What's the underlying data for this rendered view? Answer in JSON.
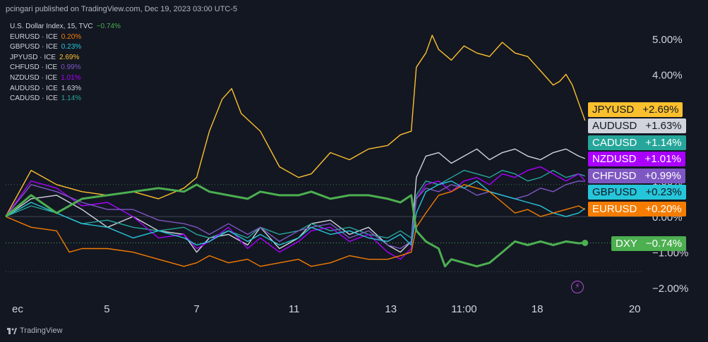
{
  "publisher_line": "pcingari published on TradingView.com, Dec 19, 2023 03:00 UTC-5",
  "brand": "TradingView",
  "colors": {
    "background": "#131722",
    "grid": "#2a2e39",
    "DXY": "#4caf50",
    "EURUSD": "#f57c00",
    "GBPUSD": "#26c6da",
    "JPYUSD": "#fbc02d",
    "CHFUSD": "#7e57c2",
    "NZDUSD": "#aa00ff",
    "AUDUSD": "#d1d4dc",
    "CADUSD": "#26a69a"
  },
  "legend": [
    {
      "key": "DXY",
      "label": "U.S. Dollar Index, 15, TVC",
      "value": "−0.74%"
    },
    {
      "key": "EURUSD",
      "label": "EURUSD · ICE",
      "value": "0.20%"
    },
    {
      "key": "GBPUSD",
      "label": "GBPUSD · ICE",
      "value": "0.23%"
    },
    {
      "key": "JPYUSD",
      "label": "JPYUSD · ICE",
      "value": "2.69%"
    },
    {
      "key": "CHFUSD",
      "label": "CHFUSD · ICE",
      "value": "0.99%"
    },
    {
      "key": "NZDUSD",
      "label": "NZDUSD · ICE",
      "value": "1.01%"
    },
    {
      "key": "AUDUSD",
      "label": "AUDUSD · ICE",
      "value": "1.63%"
    },
    {
      "key": "CADUSD",
      "label": "CADUSD · ICE",
      "value": "1.14%"
    }
  ],
  "tags": [
    {
      "key": "JPYUSD",
      "name": "JPYUSD",
      "value": "+2.69%",
      "level": 2.69,
      "bg": "#fbc02d",
      "fg": "#131722"
    },
    {
      "key": "AUDUSD",
      "name": "AUDUSD",
      "value": "+1.63%",
      "level": 1.63,
      "bg": "#d1d4dc",
      "fg": "#131722"
    },
    {
      "key": "CADUSD",
      "name": "CADUSD",
      "value": "+1.14%",
      "level": 1.14,
      "bg": "#26a69a",
      "fg": "#ffffff"
    },
    {
      "key": "NZDUSD",
      "name": "NZDUSD",
      "value": "+1.01%",
      "level": 1.01,
      "bg": "#aa00ff",
      "fg": "#ffffff"
    },
    {
      "key": "CHFUSD",
      "name": "CHFUSD",
      "value": "+0.99%",
      "level": 0.99,
      "bg": "#7e57c2",
      "fg": "#ffffff"
    },
    {
      "key": "GBPUSD",
      "name": "GBPUSD",
      "value": "+0.23%",
      "level": 0.23,
      "bg": "#26c6da",
      "fg": "#131722"
    },
    {
      "key": "EURUSD",
      "name": "EURUSD",
      "value": "+0.20%",
      "level": 0.2,
      "bg": "#f57c00",
      "fg": "#ffffff"
    },
    {
      "key": "DXY",
      "name": "DXY",
      "value": "−0.74%",
      "level": -0.74,
      "bg": "#4caf50",
      "fg": "#ffffff"
    }
  ],
  "chart_data": {
    "type": "line",
    "title": "",
    "xlabel": "",
    "ylabel": "",
    "ylim": [
      -2.2,
      5.5
    ],
    "y_ticks": [
      {
        "value": 5,
        "label": "5.00%"
      },
      {
        "value": 4,
        "label": "4.00%"
      },
      {
        "value": 3,
        "label": "3.00%"
      },
      {
        "value": 2,
        "label": "2.00%"
      },
      {
        "value": 1,
        "label": "1.00%"
      },
      {
        "value": 0,
        "label": "0.00%"
      },
      {
        "value": -1,
        "label": "−1.00%"
      },
      {
        "value": -2,
        "label": "−2.00%"
      }
    ],
    "x_range": [
      0,
      100
    ],
    "x_ticks": [
      {
        "x": 1,
        "label": "ec"
      },
      {
        "x": 15.9,
        "label": "5"
      },
      {
        "x": 30,
        "label": "7"
      },
      {
        "x": 45.3,
        "label": "11"
      },
      {
        "x": 60.5,
        "label": "13"
      },
      {
        "x": 72,
        "label": "11:00"
      },
      {
        "x": 83.5,
        "label": "18"
      },
      {
        "x": 98.8,
        "label": "20"
      }
    ],
    "grid": false,
    "legend_position": "top-left",
    "series": [
      {
        "key": "JPYUSD",
        "name": "JPYUSD · ICE",
        "x": [
          0,
          4,
          8,
          12,
          16,
          20,
          24,
          28,
          30,
          32,
          34,
          35.5,
          37,
          40,
          43,
          46,
          48,
          51,
          54,
          57,
          60,
          62,
          63.7,
          64.5,
          66,
          67,
          68,
          70,
          72,
          74,
          76,
          78,
          80,
          82,
          84,
          86,
          87,
          88,
          89,
          90,
          91
        ],
        "y": [
          0,
          1.3,
          0.9,
          0.7,
          0.6,
          0.7,
          0.5,
          0.8,
          1.1,
          2.4,
          3.3,
          3.6,
          2.9,
          2.4,
          1.4,
          1.1,
          1.2,
          1.8,
          1.6,
          1.9,
          2.0,
          2.3,
          2.4,
          4.2,
          4.6,
          5.1,
          4.7,
          4.4,
          4.8,
          4.6,
          4.5,
          4.9,
          4.6,
          4.5,
          4.1,
          3.7,
          3.8,
          4.0,
          3.7,
          3.2,
          2.7
        ]
      },
      {
        "key": "AUDUSD",
        "name": "AUDUSD · ICE",
        "x": [
          0,
          4,
          8,
          12,
          16,
          20,
          24,
          28,
          30,
          32,
          35,
          38,
          40,
          43,
          46,
          48,
          51,
          54,
          57,
          60,
          62,
          63.7,
          64.5,
          66,
          68,
          70,
          72,
          74,
          76,
          78,
          80,
          82,
          84,
          86,
          88,
          90,
          91
        ],
        "y": [
          0,
          0.5,
          0.6,
          0.2,
          -0.3,
          0,
          -0.4,
          -0.5,
          -1.0,
          -0.6,
          -0.5,
          -0.8,
          -0.3,
          -0.9,
          -0.6,
          -0.2,
          -0.1,
          -0.5,
          -0.3,
          -0.8,
          -1.0,
          -0.7,
          1.1,
          1.7,
          1.8,
          1.5,
          1.7,
          1.9,
          1.6,
          1.8,
          1.9,
          1.7,
          1.6,
          1.8,
          1.9,
          1.7,
          1.63
        ]
      },
      {
        "key": "CADUSD",
        "name": "CADUSD · ICE",
        "x": [
          0,
          4,
          8,
          12,
          16,
          20,
          24,
          28,
          30,
          32,
          35,
          38,
          40,
          43,
          46,
          48,
          51,
          54,
          57,
          60,
          62,
          63.7,
          64.5,
          66,
          68,
          70,
          72,
          74,
          76,
          78,
          80,
          82,
          84,
          86,
          88,
          90,
          91
        ],
        "y": [
          0,
          0.3,
          0.1,
          -0.2,
          -0.1,
          -0.3,
          -0.4,
          -0.3,
          -0.5,
          -0.6,
          -0.4,
          -0.6,
          -0.3,
          -0.5,
          -0.4,
          -0.2,
          -0.4,
          -0.3,
          -0.5,
          -0.6,
          -0.4,
          -0.6,
          0.6,
          1.0,
          0.9,
          1.1,
          1.3,
          1.2,
          1.1,
          1.3,
          1.2,
          1.0,
          1.1,
          1.3,
          1.1,
          1.2,
          1.14
        ]
      },
      {
        "key": "NZDUSD",
        "name": "NZDUSD · ICE",
        "x": [
          0,
          4,
          8,
          12,
          16,
          20,
          24,
          28,
          30,
          32,
          35,
          38,
          40,
          43,
          46,
          48,
          51,
          54,
          57,
          60,
          62,
          63.7,
          64.5,
          66,
          68,
          70,
          72,
          74,
          76,
          78,
          80,
          82,
          84,
          86,
          88,
          90,
          91
        ],
        "y": [
          0,
          1.0,
          0.8,
          0.3,
          0.4,
          0,
          -0.6,
          -0.5,
          -0.9,
          -0.7,
          -0.3,
          -0.9,
          -0.6,
          -1.0,
          -0.7,
          -0.4,
          -0.3,
          -0.7,
          -0.5,
          -1.0,
          -1.2,
          -0.9,
          0.5,
          0.9,
          1.0,
          0.7,
          1.0,
          1.1,
          0.9,
          1.2,
          1.1,
          1.3,
          1.4,
          1.2,
          1.0,
          1.2,
          1.01
        ]
      },
      {
        "key": "CHFUSD",
        "name": "CHFUSD · ICE",
        "x": [
          0,
          4,
          8,
          12,
          16,
          20,
          24,
          28,
          30,
          32,
          35,
          38,
          40,
          43,
          46,
          48,
          51,
          54,
          57,
          60,
          62,
          63.7,
          64.5,
          66,
          68,
          70,
          72,
          74,
          76,
          78,
          80,
          82,
          84,
          86,
          88,
          90,
          91
        ],
        "y": [
          0,
          0.9,
          0.7,
          0.4,
          0.2,
          0.2,
          -0.1,
          -0.2,
          -0.3,
          -0.5,
          -0.2,
          -0.5,
          -0.3,
          -0.7,
          -0.4,
          -0.3,
          -0.2,
          -0.6,
          -0.4,
          -0.8,
          -0.9,
          -0.7,
          0.5,
          0.8,
          0.7,
          0.9,
          0.8,
          0.6,
          0.7,
          0.6,
          0.5,
          0.6,
          0.8,
          0.7,
          0.9,
          1.0,
          0.99
        ]
      },
      {
        "key": "GBPUSD",
        "name": "GBPUSD · ICE",
        "x": [
          0,
          4,
          8,
          12,
          16,
          20,
          24,
          28,
          30,
          32,
          35,
          38,
          40,
          43,
          46,
          48,
          51,
          54,
          57,
          60,
          62,
          63.7,
          64.5,
          66,
          68,
          70,
          72,
          74,
          76,
          78,
          80,
          82,
          84,
          86,
          88,
          90,
          91
        ],
        "y": [
          0,
          0.4,
          0.1,
          -0.2,
          -0.3,
          -0.6,
          -0.4,
          -0.6,
          -0.8,
          -0.7,
          -0.4,
          -0.7,
          -0.5,
          -0.8,
          -0.6,
          -0.3,
          -0.5,
          -0.4,
          -0.6,
          -0.7,
          -0.5,
          -0.8,
          0.1,
          0.7,
          0.9,
          1.0,
          0.8,
          1.0,
          0.7,
          0.6,
          0.5,
          0.4,
          0.3,
          0.1,
          0.0,
          0.1,
          0.23
        ]
      },
      {
        "key": "EURUSD",
        "name": "EURUSD · ICE",
        "x": [
          0,
          4,
          8,
          10,
          12,
          16,
          20,
          24,
          28,
          30,
          32,
          35,
          38,
          40,
          43,
          46,
          48,
          51,
          54,
          57,
          60,
          62,
          63.7,
          64.5,
          66,
          68,
          70,
          72,
          74,
          76,
          78,
          80,
          82,
          84,
          86,
          88,
          90,
          91
        ],
        "y": [
          0,
          -0.3,
          -0.4,
          -1.0,
          -0.9,
          -0.9,
          -1.0,
          -1.2,
          -1.4,
          -1.3,
          -1.1,
          -1.3,
          -1.2,
          -1.4,
          -1.3,
          -1.2,
          -1.4,
          -1.3,
          -1.1,
          -1.2,
          -1.2,
          -1.1,
          -1.0,
          -0.3,
          0.1,
          0.6,
          0.7,
          0.9,
          0.8,
          0.7,
          0.4,
          0.1,
          0.2,
          0.0,
          0.1,
          0.2,
          0.3,
          0.2
        ]
      },
      {
        "key": "DXY",
        "name": "U.S. Dollar Index, 15, TVC",
        "x": [
          0,
          4,
          8,
          12,
          16,
          20,
          24,
          28,
          30,
          32,
          35,
          38,
          40,
          43,
          46,
          48,
          51,
          54,
          57,
          60,
          62,
          63.7,
          64.5,
          66,
          68,
          69,
          70,
          72,
          74,
          76,
          78,
          80,
          82,
          84,
          86,
          88,
          90,
          91
        ],
        "y": [
          0,
          0.6,
          0.1,
          0.5,
          0.6,
          0.7,
          0.8,
          0.7,
          0.9,
          0.7,
          0.6,
          0.5,
          0.7,
          0.6,
          0.6,
          0.7,
          0.5,
          0.6,
          0.6,
          0.5,
          0.4,
          0.6,
          -0.4,
          -0.7,
          -0.9,
          -1.4,
          -1.2,
          -1.3,
          -1.4,
          -1.3,
          -1.0,
          -0.7,
          -0.8,
          -0.7,
          -0.8,
          -0.7,
          -0.75,
          -0.74
        ]
      }
    ]
  }
}
